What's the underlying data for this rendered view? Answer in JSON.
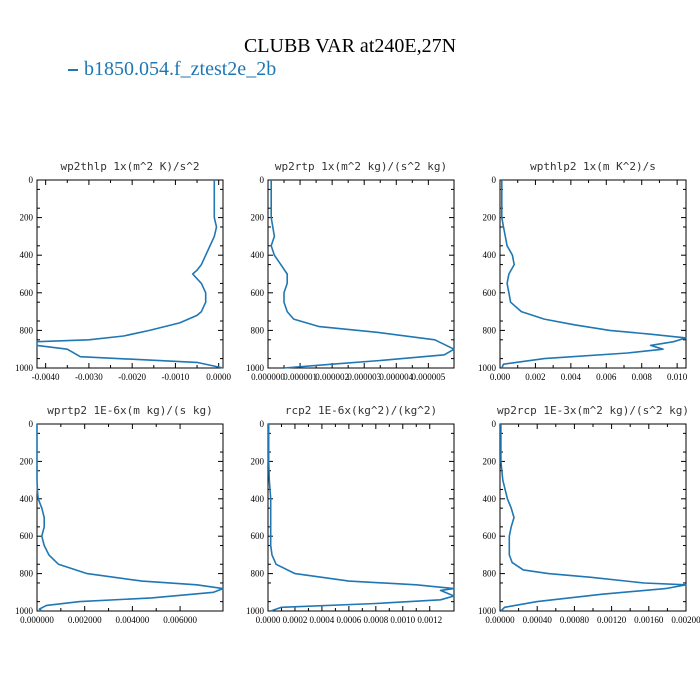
{
  "figure": {
    "title": "CLUBB VAR at240E,27N",
    "legend": "b1850.054.f_ztest2e_2b",
    "series_color": "#1f77b4"
  },
  "chart_data": [
    {
      "type": "line",
      "title": "wp2thlp  1x(m^2 K)/s^2",
      "xlim": [
        -0.0042,
        0.0001
      ],
      "xticks": [
        -0.004,
        -0.003,
        -0.002,
        -0.001,
        0.0
      ],
      "xticklabels": [
        "-0.0040",
        "-0.0030",
        "-0.0020",
        "-0.0010",
        "0.0000"
      ],
      "ylim": [
        0,
        1000
      ],
      "yticks": [
        0,
        200,
        400,
        600,
        800,
        1000
      ],
      "series": [
        {
          "x": [
            -0.0001,
            -0.0001,
            -0.0001,
            -0.0001,
            -0.0001,
            -5e-05,
            -0.0001,
            -0.0002,
            -0.0003,
            -0.0004,
            -0.0005,
            -0.0006,
            -0.0004,
            -0.0003,
            -0.0003,
            -0.0004,
            -0.0005,
            -0.0009,
            -0.0016,
            -0.0022,
            -0.003,
            -0.0042,
            -0.0042,
            -0.0035,
            -0.0032,
            -0.0005,
            0.0001
          ],
          "y": [
            0,
            50,
            100,
            150,
            200,
            250,
            300,
            350,
            400,
            450,
            480,
            500,
            550,
            600,
            650,
            700,
            720,
            760,
            800,
            830,
            850,
            860,
            880,
            900,
            940,
            970,
            1000
          ]
        }
      ]
    },
    {
      "type": "line",
      "title": "wp2rtp  1x(m^2 kg)/(s^2 kg)",
      "xlim": [
        0.0,
        5.8e-06
      ],
      "xticks": [
        0.0,
        1e-06,
        2e-06,
        3e-06,
        4e-06,
        5e-06
      ],
      "xticklabels": [
        "0.000000",
        "0.000001",
        "0.000002",
        "0.000003",
        "0.000004",
        "0.000005"
      ],
      "ylim": [
        0,
        1000
      ],
      "yticks": [
        0,
        200,
        400,
        600,
        800,
        1000
      ],
      "series": [
        {
          "x": [
            1e-07,
            1e-07,
            1e-07,
            2e-07,
            1e-07,
            2e-07,
            4e-07,
            6e-07,
            6e-07,
            5e-07,
            5e-07,
            6e-07,
            8e-07,
            1.6e-06,
            3.4e-06,
            5.2e-06,
            5.8e-06,
            5.5e-06,
            3.5e-06,
            2e-06,
            5e-07
          ],
          "y": [
            0,
            100,
            200,
            300,
            350,
            400,
            450,
            500,
            550,
            600,
            650,
            700,
            740,
            780,
            810,
            850,
            900,
            930,
            960,
            980,
            1000
          ]
        }
      ]
    },
    {
      "type": "line",
      "title": "wpthlp2  1x(m K^2)/s",
      "xlim": [
        0.0,
        0.0105
      ],
      "xticks": [
        0.0,
        0.002,
        0.004,
        0.006,
        0.008,
        0.01
      ],
      "xticklabels": [
        "0.000",
        "0.002",
        "0.004",
        "0.006",
        "0.008",
        "0.010"
      ],
      "ylim": [
        0,
        1000
      ],
      "yticks": [
        0,
        200,
        400,
        600,
        800,
        1000
      ],
      "series": [
        {
          "x": [
            0.0001,
            0.0001,
            0.0001,
            0.0002,
            0.0003,
            0.0004,
            0.0007,
            0.0008,
            0.0005,
            0.0004,
            0.0005,
            0.0006,
            0.0012,
            0.0025,
            0.0042,
            0.0062,
            0.0085,
            0.0105,
            0.0098,
            0.0085,
            0.0092,
            0.0072,
            0.0025,
            0.0002,
            0.0001
          ],
          "y": [
            0,
            100,
            200,
            250,
            300,
            350,
            400,
            450,
            500,
            550,
            600,
            650,
            700,
            740,
            770,
            800,
            820,
            840,
            860,
            880,
            900,
            920,
            950,
            980,
            1000
          ]
        }
      ]
    },
    {
      "type": "line",
      "title": "wprtp2  1E-6x(m kg)/(s kg)",
      "xlim": [
        0.0,
        0.0078
      ],
      "xticks": [
        0.0,
        0.002,
        0.004,
        0.006
      ],
      "xticklabels": [
        "0.000000",
        "0.002000",
        "0.004000",
        "0.006000"
      ],
      "ylim": [
        0,
        1000
      ],
      "yticks": [
        0,
        200,
        400,
        600,
        800,
        1000
      ],
      "series": [
        {
          "x": [
            0.0,
            0.0,
            0.0,
            0.0,
            2e-05,
            5e-05,
            0.0002,
            0.0003,
            0.0003,
            0.0002,
            0.0003,
            0.0005,
            0.0009,
            0.0021,
            0.0044,
            0.0067,
            0.0078,
            0.0074,
            0.0048,
            0.0018,
            0.0004,
            0.0001,
            0.0002
          ],
          "y": [
            0,
            100,
            200,
            300,
            360,
            400,
            450,
            500,
            550,
            600,
            650,
            700,
            750,
            800,
            840,
            860,
            880,
            900,
            930,
            950,
            970,
            990,
            1000
          ]
        }
      ]
    },
    {
      "type": "line",
      "title": "rcp2  1E-6x(kg^2)/(kg^2)",
      "xlim": [
        0.0,
        0.00138
      ],
      "xticks": [
        0.0,
        0.0002,
        0.0004,
        0.0006,
        0.0008,
        0.001,
        0.0012
      ],
      "xticklabels": [
        "0.0000",
        "0.0002",
        "0.0004",
        "0.0006",
        "0.0008",
        "0.0010",
        "0.0012"
      ],
      "ylim": [
        0,
        1000
      ],
      "yticks": [
        0,
        200,
        400,
        600,
        800,
        1000
      ],
      "series": [
        {
          "x": [
            5e-06,
            5e-06,
            5e-06,
            1e-05,
            2e-05,
            2e-05,
            2e-05,
            2e-05,
            3e-05,
            6e-05,
            0.0002,
            0.0006,
            0.0011,
            0.00138,
            0.00128,
            0.00138,
            0.00128,
            0.0008,
            0.0001,
            2e-05
          ],
          "y": [
            0,
            100,
            200,
            300,
            400,
            500,
            600,
            650,
            700,
            750,
            800,
            840,
            860,
            880,
            890,
            920,
            940,
            960,
            980,
            1000
          ]
        }
      ]
    },
    {
      "type": "line",
      "title": "wp2rcp  1E-3x(m^2 kg)/(s^2 kg)",
      "xlim": [
        0.0,
        0.002
      ],
      "xticks": [
        0.0,
        0.0004,
        0.0008,
        0.0012,
        0.0016,
        0.002
      ],
      "xticklabels": [
        "0.00000",
        "0.00040",
        "0.00080",
        "0.00120",
        "0.00160",
        "0.00200"
      ],
      "ylim": [
        0,
        1000
      ],
      "yticks": [
        0,
        200,
        400,
        600,
        800,
        1000
      ],
      "series": [
        {
          "x": [
            1e-05,
            1e-05,
            1e-05,
            3e-05,
            8e-05,
            0.00012,
            0.00015,
            0.00012,
            0.0001,
            0.0001,
            0.0001,
            0.00013,
            0.00025,
            0.00052,
            0.00098,
            0.00155,
            0.002,
            0.00178,
            0.0011,
            0.0004,
            5e-05,
            1e-05
          ],
          "y": [
            0,
            100,
            200,
            300,
            400,
            450,
            500,
            550,
            600,
            650,
            700,
            740,
            780,
            800,
            820,
            850,
            860,
            880,
            910,
            950,
            980,
            1000
          ]
        }
      ]
    }
  ]
}
